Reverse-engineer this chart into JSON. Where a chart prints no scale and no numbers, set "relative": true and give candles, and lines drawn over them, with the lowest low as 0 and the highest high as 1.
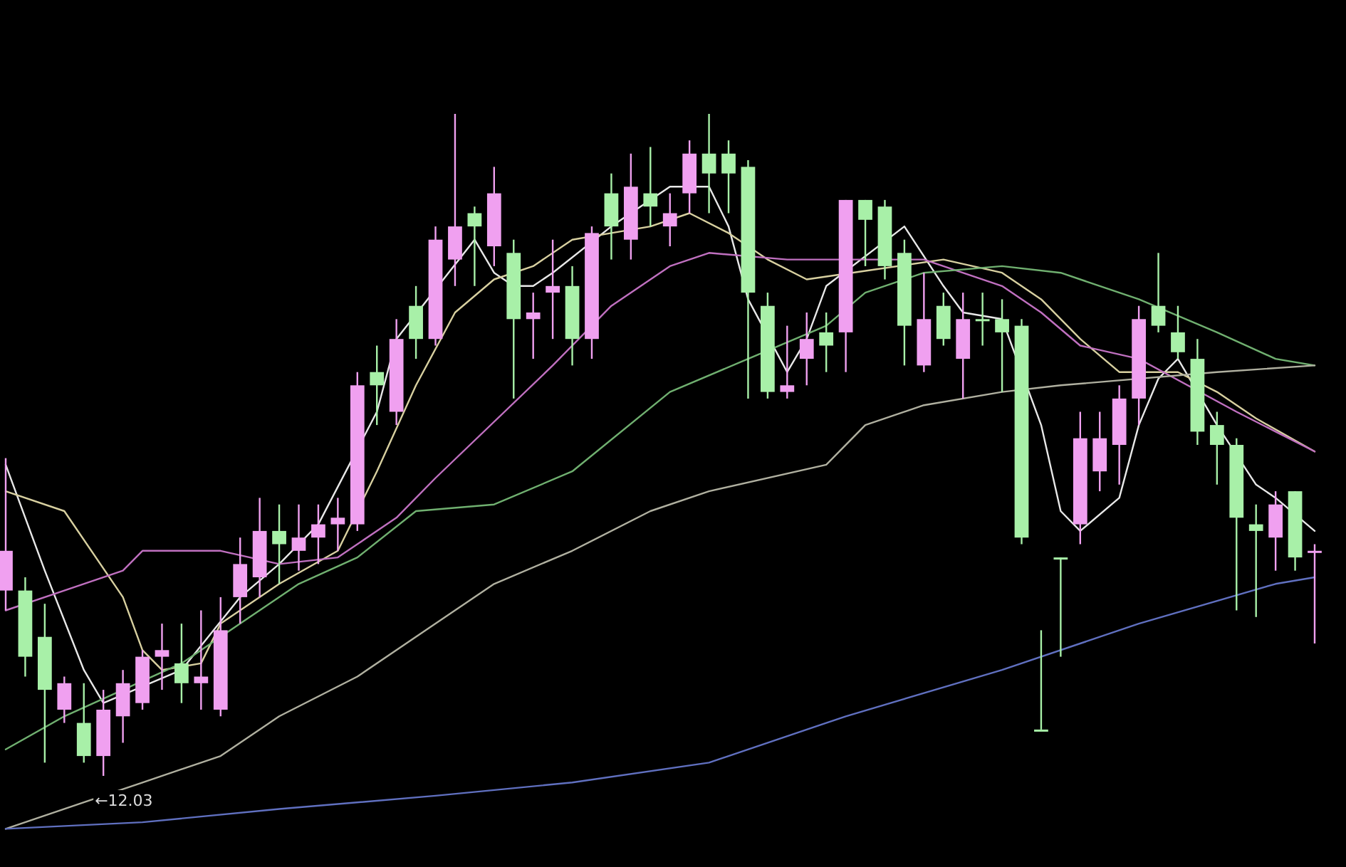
{
  "chart_data": {
    "type": "candlestick",
    "relative": true,
    "categories": [
      null,
      null,
      null,
      null,
      null,
      null,
      null,
      null,
      null,
      null,
      null,
      null,
      null,
      null,
      null,
      null,
      null,
      null,
      null,
      null,
      null,
      null,
      null,
      null,
      null,
      null,
      null,
      null,
      null,
      null,
      null,
      null,
      null,
      null,
      null,
      null,
      null,
      null,
      null,
      null,
      null,
      null,
      null,
      null,
      null,
      null,
      null,
      null,
      null,
      null,
      null,
      null,
      null,
      null,
      null,
      null,
      null,
      null,
      null,
      null,
      null,
      null,
      null,
      null,
      null,
      null,
      null,
      null
    ],
    "ohlc": [
      [
        0.28,
        0.48,
        0.25,
        0.34
      ],
      [
        0.28,
        0.3,
        0.15,
        0.18
      ],
      [
        0.21,
        0.26,
        0.02,
        0.13
      ],
      [
        0.1,
        0.15,
        0.08,
        0.14
      ],
      [
        0.08,
        0.14,
        0.02,
        0.03
      ],
      [
        0.03,
        0.13,
        0,
        0.1
      ],
      [
        0.09,
        0.16,
        0.05,
        0.14
      ],
      [
        0.11,
        0.19,
        0.1,
        0.18
      ],
      [
        0.18,
        0.23,
        0.13,
        0.19
      ],
      [
        0.17,
        0.23,
        0.11,
        0.14
      ],
      [
        0.14,
        0.25,
        0.1,
        0.15
      ],
      [
        0.1,
        0.27,
        0.09,
        0.22
      ],
      [
        0.27,
        0.36,
        0.23,
        0.32
      ],
      [
        0.3,
        0.42,
        0.27,
        0.37
      ],
      [
        0.37,
        0.41,
        0.29,
        0.35
      ],
      [
        0.34,
        0.41,
        0.31,
        0.36
      ],
      [
        0.36,
        0.41,
        0.32,
        0.38
      ],
      [
        0.38,
        0.42,
        0.34,
        0.39
      ],
      [
        0.38,
        0.61,
        0.37,
        0.59
      ],
      [
        0.61,
        0.65,
        0.53,
        0.59
      ],
      [
        0.55,
        0.69,
        0.53,
        0.66
      ],
      [
        0.71,
        0.74,
        0.63,
        0.66
      ],
      [
        0.66,
        0.83,
        0.65,
        0.81
      ],
      [
        0.78,
        1,
        0.74,
        0.83
      ],
      [
        0.85,
        0.86,
        0.74,
        0.83
      ],
      [
        0.8,
        0.92,
        0.77,
        0.88
      ],
      [
        0.79,
        0.81,
        0.57,
        0.69
      ],
      [
        0.69,
        0.73,
        0.63,
        0.7
      ],
      [
        0.73,
        0.81,
        0.66,
        0.74
      ],
      [
        0.74,
        0.77,
        0.62,
        0.66
      ],
      [
        0.66,
        0.83,
        0.63,
        0.82
      ],
      [
        0.88,
        0.91,
        0.78,
        0.83
      ],
      [
        0.81,
        0.94,
        0.78,
        0.89
      ],
      [
        0.88,
        0.95,
        0.83,
        0.86
      ],
      [
        0.83,
        0.88,
        0.8,
        0.85
      ],
      [
        0.88,
        0.96,
        0.85,
        0.94
      ],
      [
        0.94,
        1,
        0.85,
        0.91
      ],
      [
        0.94,
        0.96,
        0.85,
        0.91
      ],
      [
        0.92,
        0.93,
        0.57,
        0.73
      ],
      [
        0.71,
        0.73,
        0.57,
        0.58
      ],
      [
        0.58,
        0.68,
        0.57,
        0.59
      ],
      [
        0.63,
        0.7,
        0.59,
        0.66
      ],
      [
        0.67,
        0.7,
        0.61,
        0.65
      ],
      [
        0.67,
        0.87,
        0.61,
        0.87
      ],
      [
        0.87,
        0.87,
        0.77,
        0.84
      ],
      [
        0.86,
        0.87,
        0.75,
        0.77
      ],
      [
        0.79,
        0.81,
        0.62,
        0.68
      ],
      [
        0.62,
        0.76,
        0.61,
        0.69
      ],
      [
        0.71,
        0.73,
        0.65,
        0.66
      ],
      [
        0.63,
        0.73,
        0.57,
        0.69
      ],
      [
        0.69,
        0.73,
        0.65,
        0.69
      ],
      [
        0.69,
        0.72,
        0.58,
        0.67
      ],
      [
        0.68,
        0.69,
        0.35,
        0.36
      ],
      [
        0.07,
        0.22,
        0.07,
        0.07
      ],
      [
        0.33,
        0.33,
        0.18,
        0.33
      ],
      [
        0.38,
        0.55,
        0.35,
        0.51
      ],
      [
        0.46,
        0.55,
        0.43,
        0.51
      ],
      [
        0.5,
        0.59,
        0.44,
        0.57
      ],
      [
        0.57,
        0.71,
        0.53,
        0.69
      ],
      [
        0.71,
        0.79,
        0.67,
        0.68
      ],
      [
        0.67,
        0.71,
        0.63,
        0.64
      ],
      [
        0.63,
        0.66,
        0.5,
        0.52
      ],
      [
        0.53,
        0.55,
        0.44,
        0.5
      ],
      [
        0.5,
        0.51,
        0.25,
        0.39
      ],
      [
        0.38,
        0.41,
        0.24,
        0.37
      ],
      [
        0.36,
        0.43,
        0.31,
        0.41
      ],
      [
        0.43,
        0.43,
        0.31,
        0.33
      ],
      [
        0.34,
        0.35,
        0.2,
        0.34
      ]
    ],
    "colors": [
      "#f0a0f0",
      "#a8f0a8",
      "#a8f0a8",
      "#f0a0f0",
      "#a8f0a8",
      "#f0a0f0",
      "#f0a0f0",
      "#f0a0f0",
      "#f0a0f0",
      "#a8f0a8",
      "#f0a0f0",
      "#f0a0f0",
      "#f0a0f0",
      "#f0a0f0",
      "#a8f0a8",
      "#f0a0f0",
      "#f0a0f0",
      "#f0a0f0",
      "#f0a0f0",
      "#a8f0a8",
      "#f0a0f0",
      "#a8f0a8",
      "#f0a0f0",
      "#f0a0f0",
      "#a8f0a8",
      "#f0a0f0",
      "#a8f0a8",
      "#f0a0f0",
      "#f0a0f0",
      "#a8f0a8",
      "#f0a0f0",
      "#a8f0a8",
      "#f0a0f0",
      "#a8f0a8",
      "#f0a0f0",
      "#f0a0f0",
      "#a8f0a8",
      "#a8f0a8",
      "#a8f0a8",
      "#a8f0a8",
      "#f0a0f0",
      "#f0a0f0",
      "#a8f0a8",
      "#f0a0f0",
      "#a8f0a8",
      "#a8f0a8",
      "#a8f0a8",
      "#f0a0f0",
      "#a8f0a8",
      "#f0a0f0",
      "#a8f0a8",
      "#a8f0a8",
      "#a8f0a8",
      "#a8f0a8",
      "#a8f0a8",
      "#f0a0f0",
      "#f0a0f0",
      "#f0a0f0",
      "#f0a0f0",
      "#a8f0a8",
      "#a8f0a8",
      "#a8f0a8",
      "#a8f0a8",
      "#a8f0a8",
      "#a8f0a8",
      "#f0a0f0",
      "#a8f0a8",
      "#f0a0f0"
    ],
    "series": [
      {
        "type": "line",
        "color": "#e8e8e8",
        "values": [
          0.47,
          null,
          0.31,
          null,
          0.16,
          0.11,
          null,
          null,
          null,
          0.16,
          null,
          null,
          0.27,
          null,
          0.32,
          null,
          0.38,
          null,
          null,
          0.55,
          0.66,
          null,
          null,
          null,
          0.81,
          0.76,
          0.74,
          0.74,
          0.76,
          null,
          null,
          0.83,
          null,
          null,
          0.89,
          null,
          0.89,
          0.83,
          0.72,
          null,
          0.61,
          0.66,
          0.74,
          null,
          null,
          null,
          0.83,
          null,
          0.74,
          0.7,
          null,
          0.69,
          null,
          0.53,
          0.4,
          0.37,
          null,
          0.42,
          0.53,
          0.6,
          0.63,
          null,
          0.53,
          null,
          0.44,
          0.42,
          null,
          0.37
        ]
      },
      {
        "type": "line",
        "color": "#d8d0a0",
        "values": [
          0.43,
          null,
          null,
          0.4,
          null,
          null,
          0.27,
          0.19,
          0.16,
          null,
          0.17,
          0.23,
          null,
          null,
          0.29,
          null,
          null,
          0.34,
          null,
          0.46,
          null,
          0.59,
          null,
          0.7,
          null,
          0.75,
          null,
          0.77,
          null,
          0.81,
          null,
          0.82,
          null,
          0.83,
          null,
          0.85,
          null,
          0.82,
          null,
          0.78,
          null,
          0.75,
          null,
          null,
          null,
          null,
          null,
          null,
          0.78,
          null,
          null,
          0.76,
          null,
          0.72,
          null,
          0.66,
          null,
          0.61,
          null,
          null,
          0.61,
          null,
          0.58,
          null,
          0.54,
          null,
          null,
          0.49
        ]
      },
      {
        "type": "line",
        "color": "#c070c0",
        "values": [
          0.25,
          null,
          null,
          0.28,
          null,
          null,
          0.31,
          0.34,
          null,
          0.34,
          null,
          0.34,
          null,
          null,
          0.32,
          null,
          null,
          0.33,
          null,
          null,
          0.39,
          null,
          0.45,
          null,
          null,
          null,
          null,
          null,
          0.62,
          null,
          null,
          0.71,
          null,
          null,
          0.77,
          null,
          0.79,
          null,
          null,
          null,
          0.78,
          null,
          null,
          0.78,
          null,
          null,
          null,
          0.78,
          null,
          null,
          null,
          0.74,
          null,
          0.7,
          null,
          0.65,
          null,
          null,
          0.63,
          null,
          null,
          null,
          null,
          0.55,
          null,
          0.52,
          null,
          0.49
        ]
      },
      {
        "type": "line",
        "color": "#70b070",
        "values": [
          0.04,
          null,
          null,
          0.09,
          null,
          null,
          null,
          null,
          null,
          0.17,
          null,
          null,
          0.23,
          null,
          null,
          0.29,
          null,
          null,
          0.33,
          null,
          null,
          0.4,
          null,
          null,
          null,
          0.41,
          null,
          null,
          null,
          0.46,
          null,
          null,
          null,
          null,
          0.58,
          null,
          null,
          null,
          0.63,
          null,
          null,
          null,
          0.68,
          null,
          0.73,
          null,
          null,
          0.76,
          null,
          null,
          null,
          0.77,
          null,
          null,
          0.76,
          null,
          null,
          null,
          0.72,
          null,
          null,
          null,
          0.67,
          null,
          null,
          0.63,
          null,
          0.62
        ]
      },
      {
        "type": "line",
        "color": "#b0b0a0",
        "values": [
          -0.08,
          null,
          null,
          null,
          -0.04,
          null,
          null,
          -0.01,
          null,
          null,
          null,
          0.03,
          null,
          null,
          0.09,
          null,
          null,
          null,
          0.15,
          null,
          null,
          null,
          0.23,
          null,
          null,
          0.29,
          null,
          null,
          null,
          0.34,
          null,
          null,
          null,
          0.4,
          null,
          null,
          0.43,
          null,
          null,
          null,
          null,
          null,
          0.47,
          null,
          0.53,
          null,
          null,
          0.56,
          null,
          null,
          null,
          0.58,
          null,
          null,
          0.59,
          null,
          null,
          null,
          null,
          null,
          null,
          null,
          0.61,
          null,
          null,
          null,
          null,
          0.62
        ]
      },
      {
        "type": "line",
        "color": "#6070c0",
        "values": [
          -0.08,
          null,
          null,
          null,
          null,
          null,
          null,
          -0.07,
          null,
          null,
          null,
          null,
          null,
          null,
          -0.05,
          null,
          null,
          null,
          null,
          null,
          null,
          null,
          -0.03,
          null,
          null,
          null,
          null,
          null,
          null,
          -0.01,
          null,
          null,
          null,
          null,
          null,
          null,
          0.02,
          null,
          null,
          null,
          null,
          null,
          null,
          0.09,
          null,
          null,
          null,
          null,
          null,
          null,
          null,
          0.16,
          null,
          null,
          null,
          null,
          null,
          null,
          0.23,
          null,
          null,
          null,
          null,
          null,
          null,
          0.29,
          null,
          0.3
        ]
      }
    ],
    "annotations": [
      "←12.03"
    ]
  }
}
